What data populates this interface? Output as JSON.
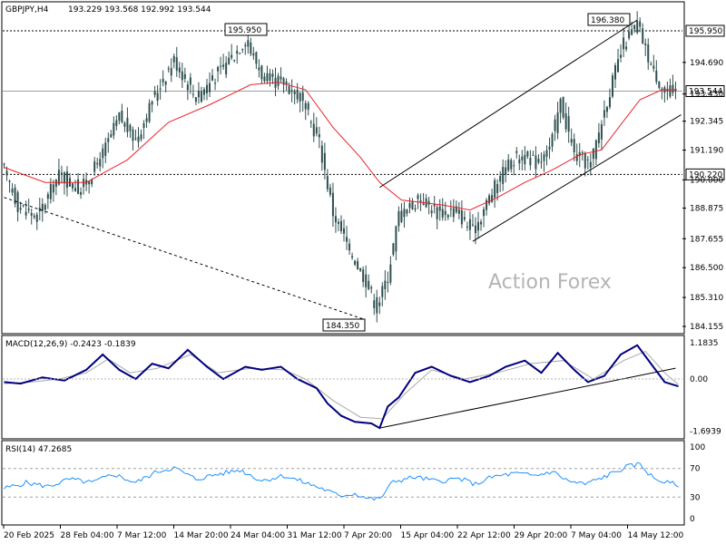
{
  "header": {
    "symbol": "GBPJPY,H4",
    "ohlc": "193.229 193.568 192.992 193.544"
  },
  "watermark": "Action Forex",
  "colors": {
    "candle": "#2f4f4f",
    "ma": "#e8232a",
    "macd_main": "#000080",
    "macd_signal": "#a9a9a9",
    "rsi": "#1e90ff",
    "trendline": "#000000",
    "grid": "#d3d3d3",
    "watermark": "#b4b4b4"
  },
  "price_axis": {
    "ticks": [
      "194.690",
      "193.430",
      "192.345",
      "191.190",
      "190.000",
      "188.875",
      "187.655",
      "186.500",
      "185.310",
      "184.155"
    ],
    "hlines": [
      {
        "value": 195.95,
        "label": "195.950",
        "style": "dashed"
      },
      {
        "value": 193.544,
        "label": "193.544",
        "style": "solid-gray",
        "boxed": true,
        "current": true
      },
      {
        "value": 190.22,
        "label": "190.220",
        "style": "dashed"
      }
    ]
  },
  "annotations": [
    {
      "label": "195.950"
    },
    {
      "label": "196.380"
    },
    {
      "label": "184.350"
    }
  ],
  "time_axis": {
    "labels": [
      "20 Feb 2025",
      "28 Feb 04:00",
      "7 Mar 12:00",
      "14 Mar 20:00",
      "24 Mar 04:00",
      "31 Mar 12:00",
      "7 Apr 20:00",
      "15 Apr 04:00",
      "22 Apr 12:00",
      "29 Apr 20:00",
      "7 May 04:00",
      "14 May 12:00"
    ]
  },
  "macd": {
    "label": "MACD(12,26,9) -0.2423 -0.1839",
    "axis_ticks": [
      "1.1835",
      "0.00",
      "-1.6939"
    ]
  },
  "rsi": {
    "label": "RSI(14) 47.2685",
    "axis_ticks": [
      "100",
      "70",
      "30",
      "0"
    ],
    "levels": [
      70,
      30
    ]
  },
  "chart_data": {
    "type": "candlestick",
    "title": "GBPJPY,H4",
    "timeframe": "H4",
    "last": {
      "open": 193.229,
      "high": 193.568,
      "low": 192.992,
      "close": 193.544
    },
    "ylim": [
      183.7,
      197.7
    ],
    "x_ticks": [
      "20 Feb 2025",
      "28 Feb 04:00",
      "7 Mar 12:00",
      "14 Mar 20:00",
      "24 Mar 04:00",
      "31 Mar 12:00",
      "7 Apr 20:00",
      "15 Apr 04:00",
      "22 Apr 12:00",
      "29 Apr 20:00",
      "7 May 04:00",
      "14 May 12:00"
    ],
    "close_path": [
      {
        "i": 0,
        "v": 190.4
      },
      {
        "i": 5,
        "v": 189.0
      },
      {
        "i": 12,
        "v": 188.5
      },
      {
        "i": 20,
        "v": 190.2
      },
      {
        "i": 28,
        "v": 189.6
      },
      {
        "i": 35,
        "v": 190.8
      },
      {
        "i": 42,
        "v": 192.5
      },
      {
        "i": 48,
        "v": 191.6
      },
      {
        "i": 56,
        "v": 193.6
      },
      {
        "i": 62,
        "v": 194.8
      },
      {
        "i": 70,
        "v": 193.3
      },
      {
        "i": 80,
        "v": 194.5
      },
      {
        "i": 88,
        "v": 195.6
      },
      {
        "i": 95,
        "v": 194.0
      },
      {
        "i": 102,
        "v": 193.9
      },
      {
        "i": 108,
        "v": 193.3
      },
      {
        "i": 115,
        "v": 191.5
      },
      {
        "i": 120,
        "v": 188.7
      },
      {
        "i": 126,
        "v": 187.2
      },
      {
        "i": 132,
        "v": 186.0
      },
      {
        "i": 136,
        "v": 184.9
      },
      {
        "i": 140,
        "v": 186.2
      },
      {
        "i": 144,
        "v": 188.6
      },
      {
        "i": 152,
        "v": 189.3
      },
      {
        "i": 158,
        "v": 188.7
      },
      {
        "i": 165,
        "v": 188.8
      },
      {
        "i": 171,
        "v": 187.9
      },
      {
        "i": 177,
        "v": 189.3
      },
      {
        "i": 183,
        "v": 190.5
      },
      {
        "i": 188,
        "v": 191.0
      },
      {
        "i": 194,
        "v": 190.7
      },
      {
        "i": 199,
        "v": 191.2
      },
      {
        "i": 203,
        "v": 193.1
      },
      {
        "i": 208,
        "v": 191.0
      },
      {
        "i": 214,
        "v": 190.6
      },
      {
        "i": 220,
        "v": 193.2
      },
      {
        "i": 226,
        "v": 195.4
      },
      {
        "i": 231,
        "v": 196.2
      },
      {
        "i": 236,
        "v": 194.6
      },
      {
        "i": 241,
        "v": 193.5
      },
      {
        "i": 245,
        "v": 193.544
      }
    ],
    "moving_average": [
      {
        "i": 0,
        "v": 190.5
      },
      {
        "i": 15,
        "v": 189.9
      },
      {
        "i": 30,
        "v": 189.9
      },
      {
        "i": 45,
        "v": 190.8
      },
      {
        "i": 60,
        "v": 192.3
      },
      {
        "i": 75,
        "v": 193.0
      },
      {
        "i": 90,
        "v": 193.8
      },
      {
        "i": 100,
        "v": 193.9
      },
      {
        "i": 110,
        "v": 193.6
      },
      {
        "i": 120,
        "v": 192.1
      },
      {
        "i": 130,
        "v": 190.9
      },
      {
        "i": 137,
        "v": 189.9
      },
      {
        "i": 145,
        "v": 189.2
      },
      {
        "i": 160,
        "v": 189.0
      },
      {
        "i": 170,
        "v": 188.8
      },
      {
        "i": 180,
        "v": 189.3
      },
      {
        "i": 190,
        "v": 189.9
      },
      {
        "i": 200,
        "v": 190.4
      },
      {
        "i": 210,
        "v": 191.0
      },
      {
        "i": 218,
        "v": 191.2
      },
      {
        "i": 225,
        "v": 192.2
      },
      {
        "i": 232,
        "v": 193.2
      },
      {
        "i": 240,
        "v": 193.6
      },
      {
        "i": 245,
        "v": 193.6
      }
    ],
    "trendlines": [
      {
        "from": {
          "i": 0,
          "v": 189.3
        },
        "to": {
          "i": 131,
          "v": 184.45
        },
        "style": "dashed"
      },
      {
        "from": {
          "i": 137,
          "v": 189.7
        },
        "to": {
          "i": 231,
          "v": 196.38
        },
        "style": "solid"
      },
      {
        "from": {
          "i": 171,
          "v": 187.55
        },
        "to": {
          "i": 247,
          "v": 192.6
        },
        "style": "solid"
      }
    ],
    "macd_line": [
      {
        "i": 0,
        "v": -0.1
      },
      {
        "i": 6,
        "v": -0.15
      },
      {
        "i": 14,
        "v": 0.05
      },
      {
        "i": 22,
        "v": -0.05
      },
      {
        "i": 30,
        "v": 0.3
      },
      {
        "i": 36,
        "v": 0.8
      },
      {
        "i": 42,
        "v": 0.3
      },
      {
        "i": 48,
        "v": 0.0
      },
      {
        "i": 54,
        "v": 0.5
      },
      {
        "i": 60,
        "v": 0.35
      },
      {
        "i": 67,
        "v": 0.95
      },
      {
        "i": 74,
        "v": 0.4
      },
      {
        "i": 80,
        "v": 0.0
      },
      {
        "i": 88,
        "v": 0.4
      },
      {
        "i": 94,
        "v": 0.3
      },
      {
        "i": 101,
        "v": 0.4
      },
      {
        "i": 107,
        "v": 0.0
      },
      {
        "i": 114,
        "v": -0.3
      },
      {
        "i": 118,
        "v": -0.8
      },
      {
        "i": 123,
        "v": -1.2
      },
      {
        "i": 128,
        "v": -1.4
      },
      {
        "i": 134,
        "v": -1.45
      },
      {
        "i": 137,
        "v": -1.6
      },
      {
        "i": 140,
        "v": -0.9
      },
      {
        "i": 144,
        "v": -0.6
      },
      {
        "i": 150,
        "v": 0.2
      },
      {
        "i": 156,
        "v": 0.4
      },
      {
        "i": 163,
        "v": 0.1
      },
      {
        "i": 170,
        "v": -0.1
      },
      {
        "i": 177,
        "v": 0.1
      },
      {
        "i": 183,
        "v": 0.4
      },
      {
        "i": 190,
        "v": 0.6
      },
      {
        "i": 196,
        "v": 0.2
      },
      {
        "i": 202,
        "v": 0.85
      },
      {
        "i": 208,
        "v": 0.3
      },
      {
        "i": 213,
        "v": -0.1
      },
      {
        "i": 219,
        "v": 0.1
      },
      {
        "i": 225,
        "v": 0.8
      },
      {
        "i": 231,
        "v": 1.1
      },
      {
        "i": 236,
        "v": 0.5
      },
      {
        "i": 241,
        "v": -0.1
      },
      {
        "i": 246,
        "v": -0.24
      }
    ],
    "macd_signal": [
      {
        "i": 0,
        "v": -0.15
      },
      {
        "i": 10,
        "v": -0.1
      },
      {
        "i": 20,
        "v": 0.0
      },
      {
        "i": 30,
        "v": 0.2
      },
      {
        "i": 38,
        "v": 0.65
      },
      {
        "i": 46,
        "v": 0.2
      },
      {
        "i": 56,
        "v": 0.35
      },
      {
        "i": 68,
        "v": 0.8
      },
      {
        "i": 78,
        "v": 0.2
      },
      {
        "i": 90,
        "v": 0.35
      },
      {
        "i": 102,
        "v": 0.3
      },
      {
        "i": 110,
        "v": 0.0
      },
      {
        "i": 120,
        "v": -0.7
      },
      {
        "i": 130,
        "v": -1.25
      },
      {
        "i": 138,
        "v": -1.3
      },
      {
        "i": 146,
        "v": -0.5
      },
      {
        "i": 156,
        "v": 0.3
      },
      {
        "i": 168,
        "v": 0.0
      },
      {
        "i": 180,
        "v": 0.2
      },
      {
        "i": 192,
        "v": 0.5
      },
      {
        "i": 204,
        "v": 0.6
      },
      {
        "i": 215,
        "v": 0.0
      },
      {
        "i": 226,
        "v": 0.6
      },
      {
        "i": 234,
        "v": 0.9
      },
      {
        "i": 241,
        "v": 0.2
      },
      {
        "i": 246,
        "v": -0.18
      }
    ],
    "macd_trendline": {
      "from": {
        "i": 137,
        "v": -1.6
      },
      "to": {
        "i": 245,
        "v": 0.35
      }
    },
    "rsi_line": [
      {
        "i": 0,
        "v": 42
      },
      {
        "i": 8,
        "v": 50
      },
      {
        "i": 16,
        "v": 45
      },
      {
        "i": 24,
        "v": 55
      },
      {
        "i": 32,
        "v": 50
      },
      {
        "i": 40,
        "v": 62
      },
      {
        "i": 48,
        "v": 50
      },
      {
        "i": 56,
        "v": 66
      },
      {
        "i": 62,
        "v": 71
      },
      {
        "i": 70,
        "v": 55
      },
      {
        "i": 78,
        "v": 62
      },
      {
        "i": 86,
        "v": 68
      },
      {
        "i": 94,
        "v": 53
      },
      {
        "i": 102,
        "v": 60
      },
      {
        "i": 110,
        "v": 50
      },
      {
        "i": 116,
        "v": 42
      },
      {
        "i": 122,
        "v": 32
      },
      {
        "i": 128,
        "v": 35
      },
      {
        "i": 133,
        "v": 28
      },
      {
        "i": 137,
        "v": 27
      },
      {
        "i": 142,
        "v": 52
      },
      {
        "i": 150,
        "v": 58
      },
      {
        "i": 158,
        "v": 52
      },
      {
        "i": 166,
        "v": 56
      },
      {
        "i": 172,
        "v": 48
      },
      {
        "i": 178,
        "v": 58
      },
      {
        "i": 186,
        "v": 63
      },
      {
        "i": 194,
        "v": 60
      },
      {
        "i": 200,
        "v": 66
      },
      {
        "i": 206,
        "v": 52
      },
      {
        "i": 212,
        "v": 48
      },
      {
        "i": 220,
        "v": 60
      },
      {
        "i": 227,
        "v": 72
      },
      {
        "i": 232,
        "v": 76
      },
      {
        "i": 237,
        "v": 56
      },
      {
        "i": 242,
        "v": 50
      },
      {
        "i": 246,
        "v": 47.27
      }
    ]
  }
}
